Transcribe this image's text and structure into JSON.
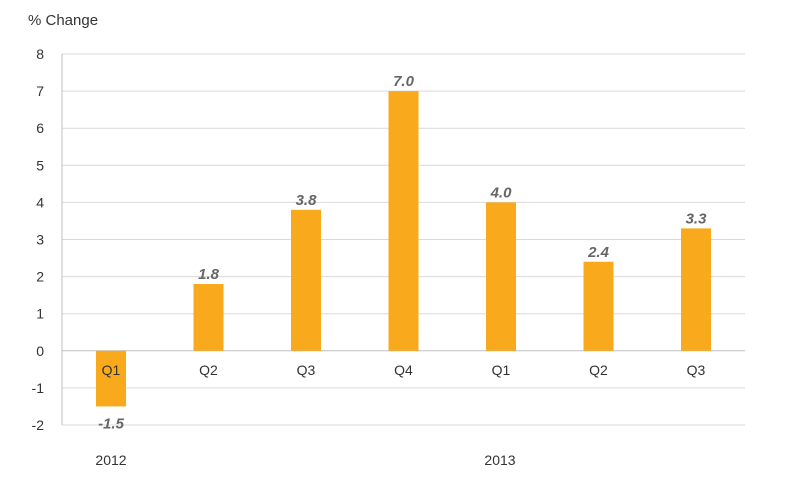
{
  "chart_data": {
    "type": "bar",
    "ylabel": "% Change",
    "ylim": [
      -2,
      8
    ],
    "yticks": [
      -2,
      -1,
      0,
      1,
      2,
      3,
      4,
      5,
      6,
      7,
      8
    ],
    "grid": true,
    "categories": [
      "Q1",
      "Q2",
      "Q3",
      "Q4",
      "Q1",
      "Q2",
      "Q3"
    ],
    "values": [
      -1.5,
      1.8,
      3.8,
      7.0,
      4.0,
      2.4,
      3.3
    ],
    "data_labels": [
      "-1.5",
      "1.8",
      "3.8",
      "7.0",
      "4.0",
      "2.4",
      "3.3"
    ],
    "groups": [
      {
        "label": "2012",
        "categories": [
          0
        ]
      },
      {
        "label": "2013",
        "categories": [
          4
        ]
      }
    ],
    "colors": {
      "bar": "#F9AA1C",
      "grid": "#D9D9D9",
      "axis": "#BFBFBF",
      "label": "#666666",
      "tick": "#333333"
    }
  }
}
